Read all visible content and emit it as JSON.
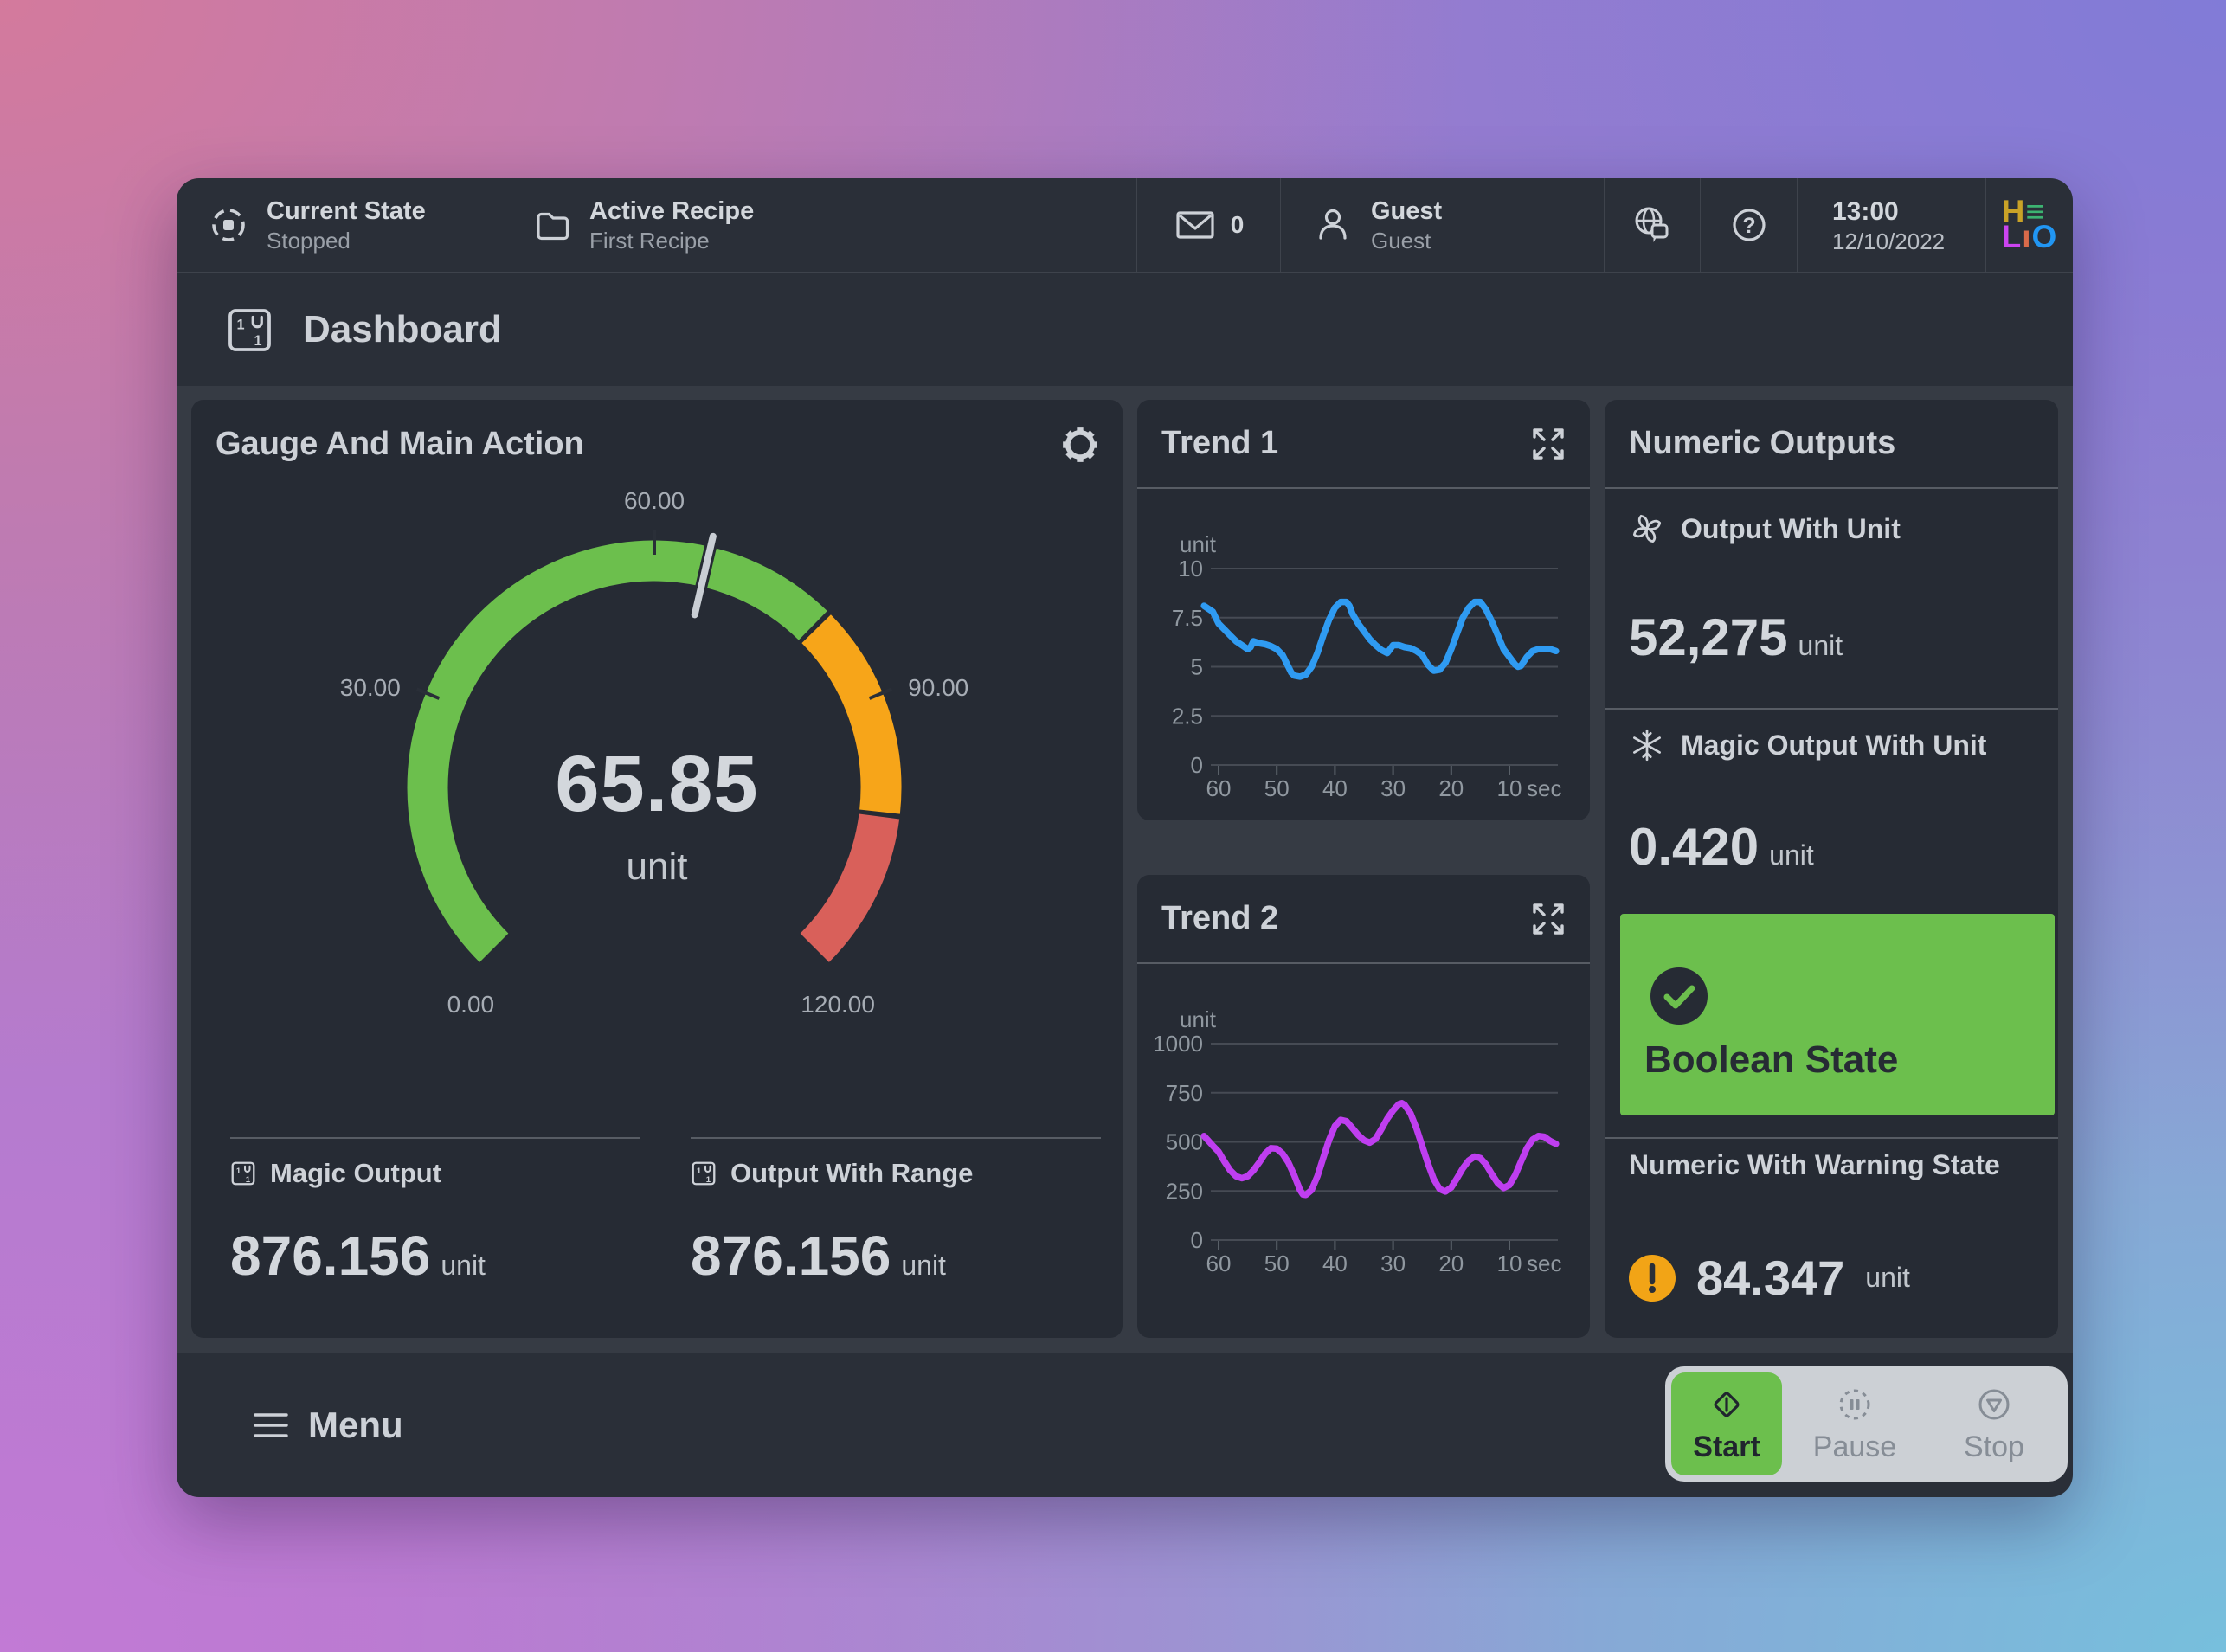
{
  "topbar": {
    "current_state": {
      "label": "Current State",
      "value": "Stopped"
    },
    "active_recipe": {
      "label": "Active Recipe",
      "value": "First Recipe"
    },
    "mail_count": "0",
    "user": {
      "name": "Guest",
      "role": "Guest"
    },
    "clock": {
      "time": "13:00",
      "date": "12/10/2022"
    },
    "logo": {
      "lines": [
        [
          {
            "ch": "H",
            "color": "#c9a227"
          },
          {
            "ch": "≡",
            "color": "#3cb371"
          }
        ],
        [
          {
            "ch": "L",
            "color": "#cc44f0"
          },
          {
            "ch": "ı",
            "color": "#d96a4a"
          },
          {
            "ch": "O",
            "color": "#2196f3"
          }
        ]
      ]
    }
  },
  "page": {
    "title": "Dashboard"
  },
  "gauge_card": {
    "title": "Gauge And Main Action",
    "chart_data": {
      "type": "gauge",
      "min": 0,
      "max": 120,
      "value": 65.85,
      "value_label": "65.85",
      "unit": "unit",
      "start_angle": 225,
      "sweep": 270,
      "tick_values": [
        0,
        30,
        60,
        90,
        120
      ],
      "tick_labels": [
        "0.00",
        "30.00",
        "60.00",
        "90.00",
        "120.00"
      ],
      "tick_marks": [
        30,
        60,
        90
      ],
      "zones": [
        {
          "from": 0,
          "to": 80,
          "color": "#6cbf4d"
        },
        {
          "from": 80,
          "to": 103,
          "color": "#f7a519"
        },
        {
          "from": 103,
          "to": 120,
          "color": "#d9605a"
        }
      ]
    },
    "outputs": [
      {
        "label": "Magic Output",
        "value": "876.156",
        "unit": "unit"
      },
      {
        "label": "Output With Range",
        "value": "876.156",
        "unit": "unit"
      }
    ]
  },
  "trend1": {
    "title": "Trend 1",
    "chart_data": {
      "type": "line",
      "color": "#2f9bf2",
      "ylabel_unit": "unit",
      "ylim": [
        0,
        10
      ],
      "yticks": [
        0,
        2.5,
        5,
        7.5,
        10
      ],
      "ytick_labels": [
        "0",
        "2.5",
        "5",
        "7.5",
        "10"
      ],
      "xticks": [
        60,
        50,
        40,
        30,
        20,
        10
      ],
      "x_suffix": "sec",
      "grid": true,
      "points": [
        [
          62.5,
          8.1
        ],
        [
          61,
          7.8
        ],
        [
          60,
          7.2
        ],
        [
          59,
          6.9
        ],
        [
          58,
          6.6
        ],
        [
          57,
          6.3
        ],
        [
          56,
          6.1
        ],
        [
          55,
          5.9
        ],
        [
          54.5,
          6.0
        ],
        [
          54,
          6.3
        ],
        [
          53,
          6.2
        ],
        [
          52,
          6.15
        ],
        [
          51,
          6.05
        ],
        [
          50,
          5.9
        ],
        [
          49,
          5.6
        ],
        [
          48,
          5.0
        ],
        [
          47.5,
          4.7
        ],
        [
          47,
          4.55
        ],
        [
          46,
          4.5
        ],
        [
          45,
          4.6
        ],
        [
          44,
          5.0
        ],
        [
          43,
          5.7
        ],
        [
          42,
          6.6
        ],
        [
          41,
          7.4
        ],
        [
          40,
          8.0
        ],
        [
          39,
          8.3
        ],
        [
          38,
          8.3
        ],
        [
          37.5,
          8.1
        ],
        [
          37,
          7.7
        ],
        [
          36,
          7.2
        ],
        [
          35,
          6.8
        ],
        [
          34,
          6.4
        ],
        [
          33,
          6.1
        ],
        [
          32,
          5.85
        ],
        [
          31,
          5.7
        ],
        [
          30.5,
          5.9
        ],
        [
          30,
          6.1
        ],
        [
          29,
          6.1
        ],
        [
          28,
          6.0
        ],
        [
          27,
          5.95
        ],
        [
          26,
          5.8
        ],
        [
          25,
          5.6
        ],
        [
          24,
          5.1
        ],
        [
          23,
          4.8
        ],
        [
          22,
          4.85
        ],
        [
          21,
          5.2
        ],
        [
          20,
          5.9
        ],
        [
          19,
          6.7
        ],
        [
          18,
          7.5
        ],
        [
          17,
          8.0
        ],
        [
          16,
          8.3
        ],
        [
          15,
          8.3
        ],
        [
          14,
          7.9
        ],
        [
          13,
          7.3
        ],
        [
          12,
          6.6
        ],
        [
          11,
          5.9
        ],
        [
          10,
          5.5
        ],
        [
          9,
          5.1
        ],
        [
          8.5,
          5.0
        ],
        [
          8,
          5.05
        ],
        [
          7,
          5.5
        ],
        [
          6,
          5.8
        ],
        [
          5,
          5.9
        ],
        [
          4,
          5.9
        ],
        [
          3,
          5.9
        ],
        [
          2,
          5.8
        ]
      ]
    }
  },
  "trend2": {
    "title": "Trend 2",
    "chart_data": {
      "type": "line",
      "color": "#bf3ef0",
      "ylabel_unit": "unit",
      "ylim": [
        0,
        1000
      ],
      "yticks": [
        0,
        250,
        500,
        750,
        1000
      ],
      "ytick_labels": [
        "0",
        "250",
        "500",
        "750",
        "1000"
      ],
      "xticks": [
        60,
        50,
        40,
        30,
        20,
        10
      ],
      "x_suffix": "sec",
      "grid": true,
      "points": [
        [
          62.5,
          530
        ],
        [
          61,
          480
        ],
        [
          60,
          450
        ],
        [
          59,
          400
        ],
        [
          58,
          355
        ],
        [
          57,
          325
        ],
        [
          56,
          315
        ],
        [
          55,
          325
        ],
        [
          54,
          355
        ],
        [
          53,
          395
        ],
        [
          52,
          440
        ],
        [
          51,
          468
        ],
        [
          50,
          465
        ],
        [
          49,
          440
        ],
        [
          48,
          395
        ],
        [
          47,
          330
        ],
        [
          46,
          255
        ],
        [
          45.5,
          232
        ],
        [
          45,
          230
        ],
        [
          44,
          255
        ],
        [
          43,
          325
        ],
        [
          42,
          420
        ],
        [
          41,
          510
        ],
        [
          40,
          580
        ],
        [
          39,
          612
        ],
        [
          38,
          605
        ],
        [
          37,
          570
        ],
        [
          36,
          535
        ],
        [
          35,
          508
        ],
        [
          34,
          496
        ],
        [
          33,
          515
        ],
        [
          32,
          565
        ],
        [
          31,
          618
        ],
        [
          30,
          660
        ],
        [
          29,
          692
        ],
        [
          28.5,
          697
        ],
        [
          28,
          688
        ],
        [
          27,
          645
        ],
        [
          26,
          570
        ],
        [
          25,
          480
        ],
        [
          24,
          390
        ],
        [
          23,
          310
        ],
        [
          22,
          260
        ],
        [
          21,
          247
        ],
        [
          20,
          268
        ],
        [
          19,
          315
        ],
        [
          18,
          365
        ],
        [
          17,
          405
        ],
        [
          16,
          425
        ],
        [
          15,
          417
        ],
        [
          14,
          385
        ],
        [
          13,
          335
        ],
        [
          12,
          290
        ],
        [
          11,
          265
        ],
        [
          10,
          280
        ],
        [
          9,
          330
        ],
        [
          8,
          400
        ],
        [
          7,
          468
        ],
        [
          6,
          512
        ],
        [
          5,
          530
        ],
        [
          4,
          526
        ],
        [
          3,
          505
        ],
        [
          2,
          490
        ]
      ]
    }
  },
  "numeric_outputs": {
    "title": "Numeric Outputs",
    "items": [
      {
        "icon": "fan-icon",
        "label": "Output With Unit",
        "value": "52,275",
        "unit": "unit"
      },
      {
        "icon": "snowflake-icon",
        "label": "Magic Output With Unit",
        "value": "0.420",
        "unit": "unit"
      }
    ],
    "boolean_state": {
      "label": "Boolean State",
      "active": true,
      "color": "#6cbf4d"
    },
    "warning": {
      "label": "Numeric With Warning State",
      "value": "84.347",
      "unit": "unit",
      "state": "warning",
      "color": "#f2a416"
    }
  },
  "footer": {
    "menu_label": "Menu",
    "actions": [
      {
        "label": "Start",
        "active": true,
        "color": "#6cbf4d"
      },
      {
        "label": "Pause",
        "active": false
      },
      {
        "label": "Stop",
        "active": false
      }
    ]
  },
  "colors": {
    "window_bg": "#2a2f38",
    "content_bg": "#363b44",
    "card_bg": "#262b34",
    "text_primary": "#d3d7dc",
    "text_secondary": "#9aa0a8",
    "green": "#6cbf4d",
    "orange": "#f7a519",
    "red": "#d9605a",
    "trend1_line": "#2f9bf2",
    "trend2_line": "#bf3ef0",
    "warning": "#f2a416",
    "actions_tray": "#ccd0d5",
    "bg_corner_tl": "#d67a9a",
    "bg_corner_tr": "#7f7bd8",
    "bg_corner_bl": "#c47ad6",
    "bg_corner_br": "#74c3de"
  }
}
